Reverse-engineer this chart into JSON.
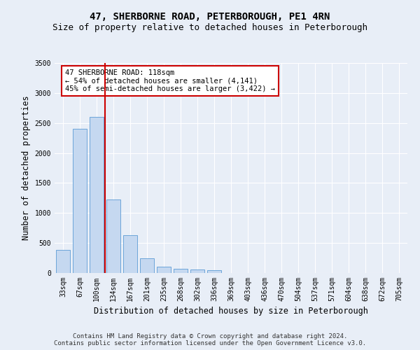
{
  "title": "47, SHERBORNE ROAD, PETERBOROUGH, PE1 4RN",
  "subtitle": "Size of property relative to detached houses in Peterborough",
  "xlabel": "Distribution of detached houses by size in Peterborough",
  "ylabel": "Number of detached properties",
  "categories": [
    "33sqm",
    "67sqm",
    "100sqm",
    "134sqm",
    "167sqm",
    "201sqm",
    "235sqm",
    "268sqm",
    "302sqm",
    "336sqm",
    "369sqm",
    "403sqm",
    "436sqm",
    "470sqm",
    "504sqm",
    "537sqm",
    "571sqm",
    "604sqm",
    "638sqm",
    "672sqm",
    "705sqm"
  ],
  "values": [
    390,
    2400,
    2600,
    1220,
    630,
    250,
    100,
    65,
    55,
    45,
    0,
    0,
    0,
    0,
    0,
    0,
    0,
    0,
    0,
    0,
    0
  ],
  "bar_color": "#c5d8f0",
  "bar_edge_color": "#5b9bd5",
  "vline_color": "#cc0000",
  "annotation_text": "47 SHERBORNE ROAD: 118sqm\n← 54% of detached houses are smaller (4,141)\n45% of semi-detached houses are larger (3,422) →",
  "annotation_box_color": "#ffffff",
  "annotation_box_edge": "#cc0000",
  "ylim": [
    0,
    3500
  ],
  "yticks": [
    0,
    500,
    1000,
    1500,
    2000,
    2500,
    3000,
    3500
  ],
  "footer": "Contains HM Land Registry data © Crown copyright and database right 2024.\nContains public sector information licensed under the Open Government Licence v3.0.",
  "bg_color": "#e8eef7",
  "plot_bg_color": "#e8eef7",
  "grid_color": "#ffffff",
  "title_fontsize": 10,
  "subtitle_fontsize": 9,
  "axis_label_fontsize": 8.5,
  "tick_fontsize": 7,
  "footer_fontsize": 6.5,
  "annotation_fontsize": 7.5
}
